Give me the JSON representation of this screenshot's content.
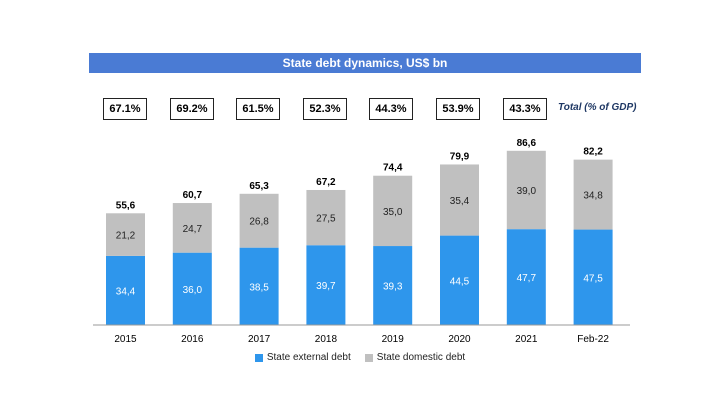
{
  "title": "State debt dynamics, US$ bn",
  "gdp_label": "Total (% of GDP)",
  "gdp_ratios": [
    "67.1%",
    "69.2%",
    "61.5%",
    "52.3%",
    "44.3%",
    "53.9%",
    "43.3%"
  ],
  "colors": {
    "external": "#2e96ec",
    "domestic": "#c0c0c0",
    "title_bg": "#4a7bd4"
  },
  "chart_data": {
    "type": "bar",
    "stacked": true,
    "categories": [
      "2015",
      "2016",
      "2017",
      "2018",
      "2019",
      "2020",
      "2021",
      "Feb-22"
    ],
    "series": [
      {
        "name": "State external debt",
        "values": [
          34.4,
          36.0,
          38.5,
          39.7,
          39.3,
          44.5,
          47.7,
          47.5
        ],
        "labels": [
          "34,4",
          "36,0",
          "38,5",
          "39,7",
          "39,3",
          "44,5",
          "47,7",
          "47,5"
        ]
      },
      {
        "name": "State domestic debt",
        "values": [
          21.2,
          24.7,
          26.8,
          27.5,
          35.0,
          35.4,
          39.0,
          34.8
        ],
        "labels": [
          "21,2",
          "24,7",
          "26,8",
          "27,5",
          "35,0",
          "35,4",
          "39,0",
          "34,8"
        ]
      }
    ],
    "totals": [
      55.6,
      60.7,
      65.3,
      67.2,
      74.4,
      79.9,
      86.6,
      82.2
    ],
    "total_labels": [
      "55,6",
      "60,7",
      "65,3",
      "67,2",
      "74,4",
      "79,9",
      "86,6",
      "82,2"
    ],
    "title": "State debt dynamics, US$ bn",
    "xlabel": "",
    "ylabel": "",
    "ylim": [
      0,
      86.6
    ],
    "grid": false,
    "legend": "bottom"
  }
}
